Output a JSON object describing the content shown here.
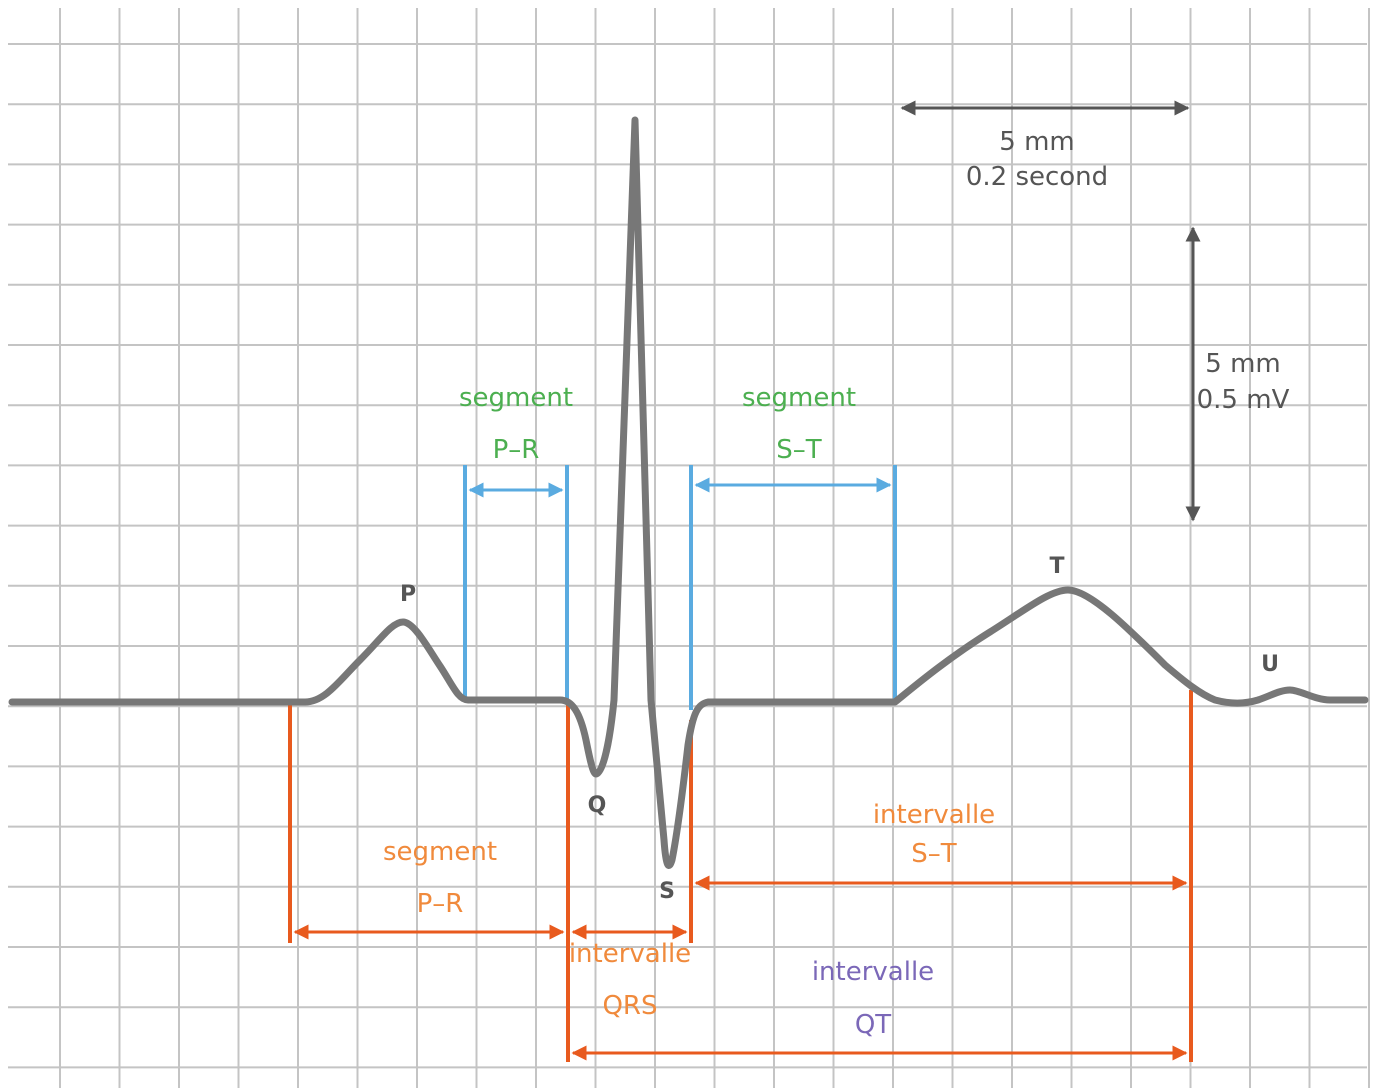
{
  "colors": {
    "grid": "#c4c4c4",
    "trace": "#777777",
    "scale": "#555555",
    "segment_green": "#4caf50",
    "segment_blue": "#5aabe0",
    "interval_orange": "#e85a1e",
    "interval_text_orange": "#f08a3c",
    "qt_purple": "#7b68b8"
  },
  "waves": {
    "p": "P",
    "q": "Q",
    "s": "S",
    "t": "T",
    "u": "U"
  },
  "scale": {
    "horizontal": {
      "distance": "5 mm",
      "value": "0.2 second"
    },
    "vertical": {
      "distance": "5 mm",
      "value": "0.5 mV"
    }
  },
  "annotations": {
    "upper_pr": {
      "word": "segment",
      "name": "P–R"
    },
    "upper_st": {
      "word": "segment",
      "name": "S–T"
    },
    "lower_pr": {
      "word": "segment",
      "name": "P–R"
    },
    "qrs": {
      "word": "intervalle",
      "name": "QRS"
    },
    "lower_st": {
      "word": "intervalle",
      "name": "S–T"
    },
    "qt": {
      "word": "intervalle",
      "name": "QT"
    }
  }
}
